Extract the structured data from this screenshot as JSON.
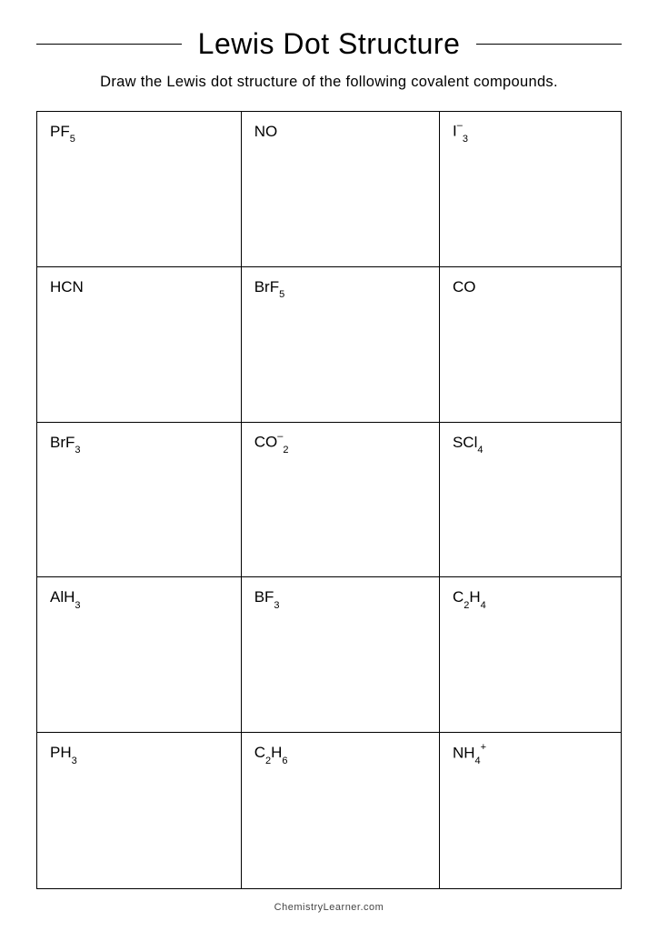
{
  "title": "Lewis Dot Structure",
  "instructions": "Draw the Lewis dot structure of the following covalent compounds.",
  "footer": "ChemistryLearner.com",
  "table": {
    "rows": 5,
    "cols": 3,
    "border_color": "#000000",
    "cells": [
      {
        "parts": [
          {
            "t": "PF"
          },
          {
            "t": "5",
            "kind": "sub"
          }
        ]
      },
      {
        "parts": [
          {
            "t": "NO"
          }
        ]
      },
      {
        "parts": [
          {
            "t": "I"
          },
          {
            "t": "–",
            "kind": "sup"
          },
          {
            "t": "3",
            "kind": "sub"
          }
        ]
      },
      {
        "parts": [
          {
            "t": "HCN"
          }
        ]
      },
      {
        "parts": [
          {
            "t": "BrF"
          },
          {
            "t": "5",
            "kind": "sub"
          }
        ]
      },
      {
        "parts": [
          {
            "t": "CO"
          }
        ]
      },
      {
        "parts": [
          {
            "t": "BrF"
          },
          {
            "t": "3",
            "kind": "sub"
          }
        ]
      },
      {
        "parts": [
          {
            "t": "CO"
          },
          {
            "t": "–",
            "kind": "sup"
          },
          {
            "t": "2",
            "kind": "sub"
          }
        ]
      },
      {
        "parts": [
          {
            "t": "SCl"
          },
          {
            "t": "4",
            "kind": "sub"
          }
        ]
      },
      {
        "parts": [
          {
            "t": "AlH"
          },
          {
            "t": "3",
            "kind": "sub"
          }
        ]
      },
      {
        "parts": [
          {
            "t": "BF"
          },
          {
            "t": "3",
            "kind": "sub"
          }
        ]
      },
      {
        "parts": [
          {
            "t": "C"
          },
          {
            "t": "2",
            "kind": "sub"
          },
          {
            "t": "H"
          },
          {
            "t": "4",
            "kind": "sub"
          }
        ]
      },
      {
        "parts": [
          {
            "t": "PH"
          },
          {
            "t": "3",
            "kind": "sub"
          }
        ]
      },
      {
        "parts": [
          {
            "t": "C"
          },
          {
            "t": "2",
            "kind": "sub"
          },
          {
            "t": "H"
          },
          {
            "t": "6",
            "kind": "sub"
          }
        ]
      },
      {
        "parts": [
          {
            "t": "NH"
          },
          {
            "t": "4",
            "kind": "sub"
          },
          {
            "t": "+",
            "kind": "sup"
          }
        ]
      }
    ]
  },
  "style": {
    "page_bg": "#ffffff",
    "text_color": "#000000",
    "title_fontsize": 32,
    "instructions_fontsize": 16.5,
    "cell_fontsize": 17,
    "sub_sup_fontsize": 11,
    "footer_fontsize": 11,
    "footer_color": "#444444"
  }
}
